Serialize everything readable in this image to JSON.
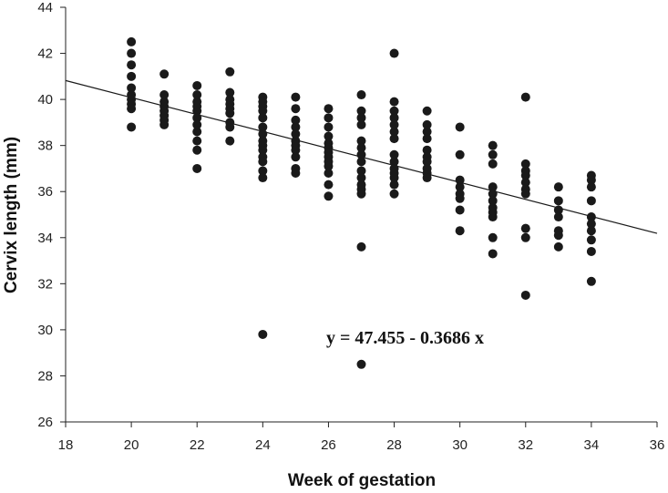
{
  "chart_data": {
    "type": "scatter",
    "xlabel": "Week of gestation",
    "ylabel": "Cervix length (mm)",
    "xlim": [
      18,
      36
    ],
    "ylim": [
      26,
      44
    ],
    "xticks": [
      18,
      20,
      22,
      24,
      26,
      28,
      30,
      32,
      34,
      36
    ],
    "yticks": [
      26,
      28,
      30,
      32,
      34,
      36,
      38,
      40,
      42,
      44
    ],
    "grid": false,
    "point_color": "#1a1a1a",
    "line_color": "#1a1a1a",
    "regression": {
      "intercept": 47.455,
      "slope": -0.3686,
      "equation_text": "y = 47.455 - 0.3686 x"
    },
    "points": [
      [
        20,
        42.5
      ],
      [
        20,
        42.0
      ],
      [
        20,
        41.5
      ],
      [
        20,
        41.0
      ],
      [
        20,
        40.5
      ],
      [
        20,
        40.2
      ],
      [
        20,
        40.0
      ],
      [
        20,
        39.8
      ],
      [
        20,
        39.6
      ],
      [
        20,
        38.8
      ],
      [
        21,
        41.1
      ],
      [
        21,
        40.2
      ],
      [
        21,
        39.9
      ],
      [
        21,
        39.7
      ],
      [
        21,
        39.5
      ],
      [
        21,
        39.3
      ],
      [
        21,
        39.1
      ],
      [
        21,
        38.9
      ],
      [
        22,
        40.6
      ],
      [
        22,
        40.2
      ],
      [
        22,
        39.9
      ],
      [
        22,
        39.7
      ],
      [
        22,
        39.5
      ],
      [
        22,
        39.2
      ],
      [
        22,
        38.9
      ],
      [
        22,
        38.6
      ],
      [
        22,
        38.2
      ],
      [
        22,
        37.8
      ],
      [
        22,
        37.0
      ],
      [
        23,
        41.2
      ],
      [
        23,
        40.3
      ],
      [
        23,
        40.0
      ],
      [
        23,
        39.8
      ],
      [
        23,
        39.6
      ],
      [
        23,
        39.4
      ],
      [
        23,
        39.0
      ],
      [
        23,
        38.8
      ],
      [
        23,
        38.2
      ],
      [
        24,
        40.1
      ],
      [
        24,
        39.9
      ],
      [
        24,
        39.7
      ],
      [
        24,
        39.5
      ],
      [
        24,
        39.2
      ],
      [
        24,
        38.8
      ],
      [
        24,
        38.5
      ],
      [
        24,
        38.2
      ],
      [
        24,
        38.0
      ],
      [
        24,
        37.8
      ],
      [
        24,
        37.5
      ],
      [
        24,
        37.3
      ],
      [
        24,
        36.9
      ],
      [
        24,
        36.6
      ],
      [
        24,
        29.8
      ],
      [
        25,
        40.1
      ],
      [
        25,
        39.6
      ],
      [
        25,
        39.1
      ],
      [
        25,
        38.8
      ],
      [
        25,
        38.5
      ],
      [
        25,
        38.2
      ],
      [
        25,
        38.0
      ],
      [
        25,
        37.8
      ],
      [
        25,
        37.5
      ],
      [
        25,
        37.0
      ],
      [
        25,
        36.8
      ],
      [
        26,
        39.6
      ],
      [
        26,
        39.2
      ],
      [
        26,
        38.8
      ],
      [
        26,
        38.4
      ],
      [
        26,
        38.1
      ],
      [
        26,
        37.9
      ],
      [
        26,
        37.7
      ],
      [
        26,
        37.5
      ],
      [
        26,
        37.3
      ],
      [
        26,
        37.1
      ],
      [
        26,
        36.8
      ],
      [
        26,
        36.3
      ],
      [
        26,
        35.8
      ],
      [
        27,
        40.2
      ],
      [
        27,
        39.5
      ],
      [
        27,
        39.2
      ],
      [
        27,
        38.9
      ],
      [
        27,
        38.2
      ],
      [
        27,
        37.9
      ],
      [
        27,
        37.6
      ],
      [
        27,
        37.3
      ],
      [
        27,
        36.9
      ],
      [
        27,
        36.6
      ],
      [
        27,
        36.3
      ],
      [
        27,
        36.1
      ],
      [
        27,
        35.9
      ],
      [
        27,
        33.6
      ],
      [
        27,
        28.5
      ],
      [
        28,
        42.0
      ],
      [
        28,
        39.9
      ],
      [
        28,
        39.5
      ],
      [
        28,
        39.2
      ],
      [
        28,
        38.9
      ],
      [
        28,
        38.6
      ],
      [
        28,
        38.3
      ],
      [
        28,
        37.6
      ],
      [
        28,
        37.3
      ],
      [
        28,
        37.0
      ],
      [
        28,
        36.8
      ],
      [
        28,
        36.6
      ],
      [
        28,
        36.3
      ],
      [
        28,
        35.9
      ],
      [
        29,
        39.5
      ],
      [
        29,
        38.9
      ],
      [
        29,
        38.6
      ],
      [
        29,
        38.3
      ],
      [
        29,
        37.8
      ],
      [
        29,
        37.5
      ],
      [
        29,
        37.3
      ],
      [
        29,
        37.0
      ],
      [
        29,
        36.8
      ],
      [
        29,
        36.6
      ],
      [
        30,
        38.8
      ],
      [
        30,
        37.6
      ],
      [
        30,
        36.5
      ],
      [
        30,
        36.2
      ],
      [
        30,
        35.9
      ],
      [
        30,
        35.7
      ],
      [
        30,
        35.2
      ],
      [
        30,
        34.3
      ],
      [
        31,
        38.0
      ],
      [
        31,
        37.6
      ],
      [
        31,
        37.2
      ],
      [
        31,
        36.2
      ],
      [
        31,
        35.9
      ],
      [
        31,
        35.6
      ],
      [
        31,
        35.3
      ],
      [
        31,
        35.1
      ],
      [
        31,
        34.9
      ],
      [
        31,
        34.0
      ],
      [
        31,
        33.3
      ],
      [
        32,
        40.1
      ],
      [
        32,
        37.2
      ],
      [
        32,
        36.9
      ],
      [
        32,
        36.7
      ],
      [
        32,
        36.4
      ],
      [
        32,
        36.1
      ],
      [
        32,
        35.9
      ],
      [
        32,
        34.4
      ],
      [
        32,
        34.0
      ],
      [
        32,
        31.5
      ],
      [
        33,
        36.2
      ],
      [
        33,
        35.6
      ],
      [
        33,
        35.2
      ],
      [
        33,
        34.9
      ],
      [
        33,
        34.3
      ],
      [
        33,
        34.1
      ],
      [
        33,
        33.6
      ],
      [
        34,
        36.7
      ],
      [
        34,
        36.5
      ],
      [
        34,
        36.2
      ],
      [
        34,
        35.6
      ],
      [
        34,
        34.9
      ],
      [
        34,
        34.6
      ],
      [
        34,
        34.3
      ],
      [
        34,
        33.9
      ],
      [
        34,
        33.4
      ],
      [
        34,
        32.1
      ]
    ]
  }
}
